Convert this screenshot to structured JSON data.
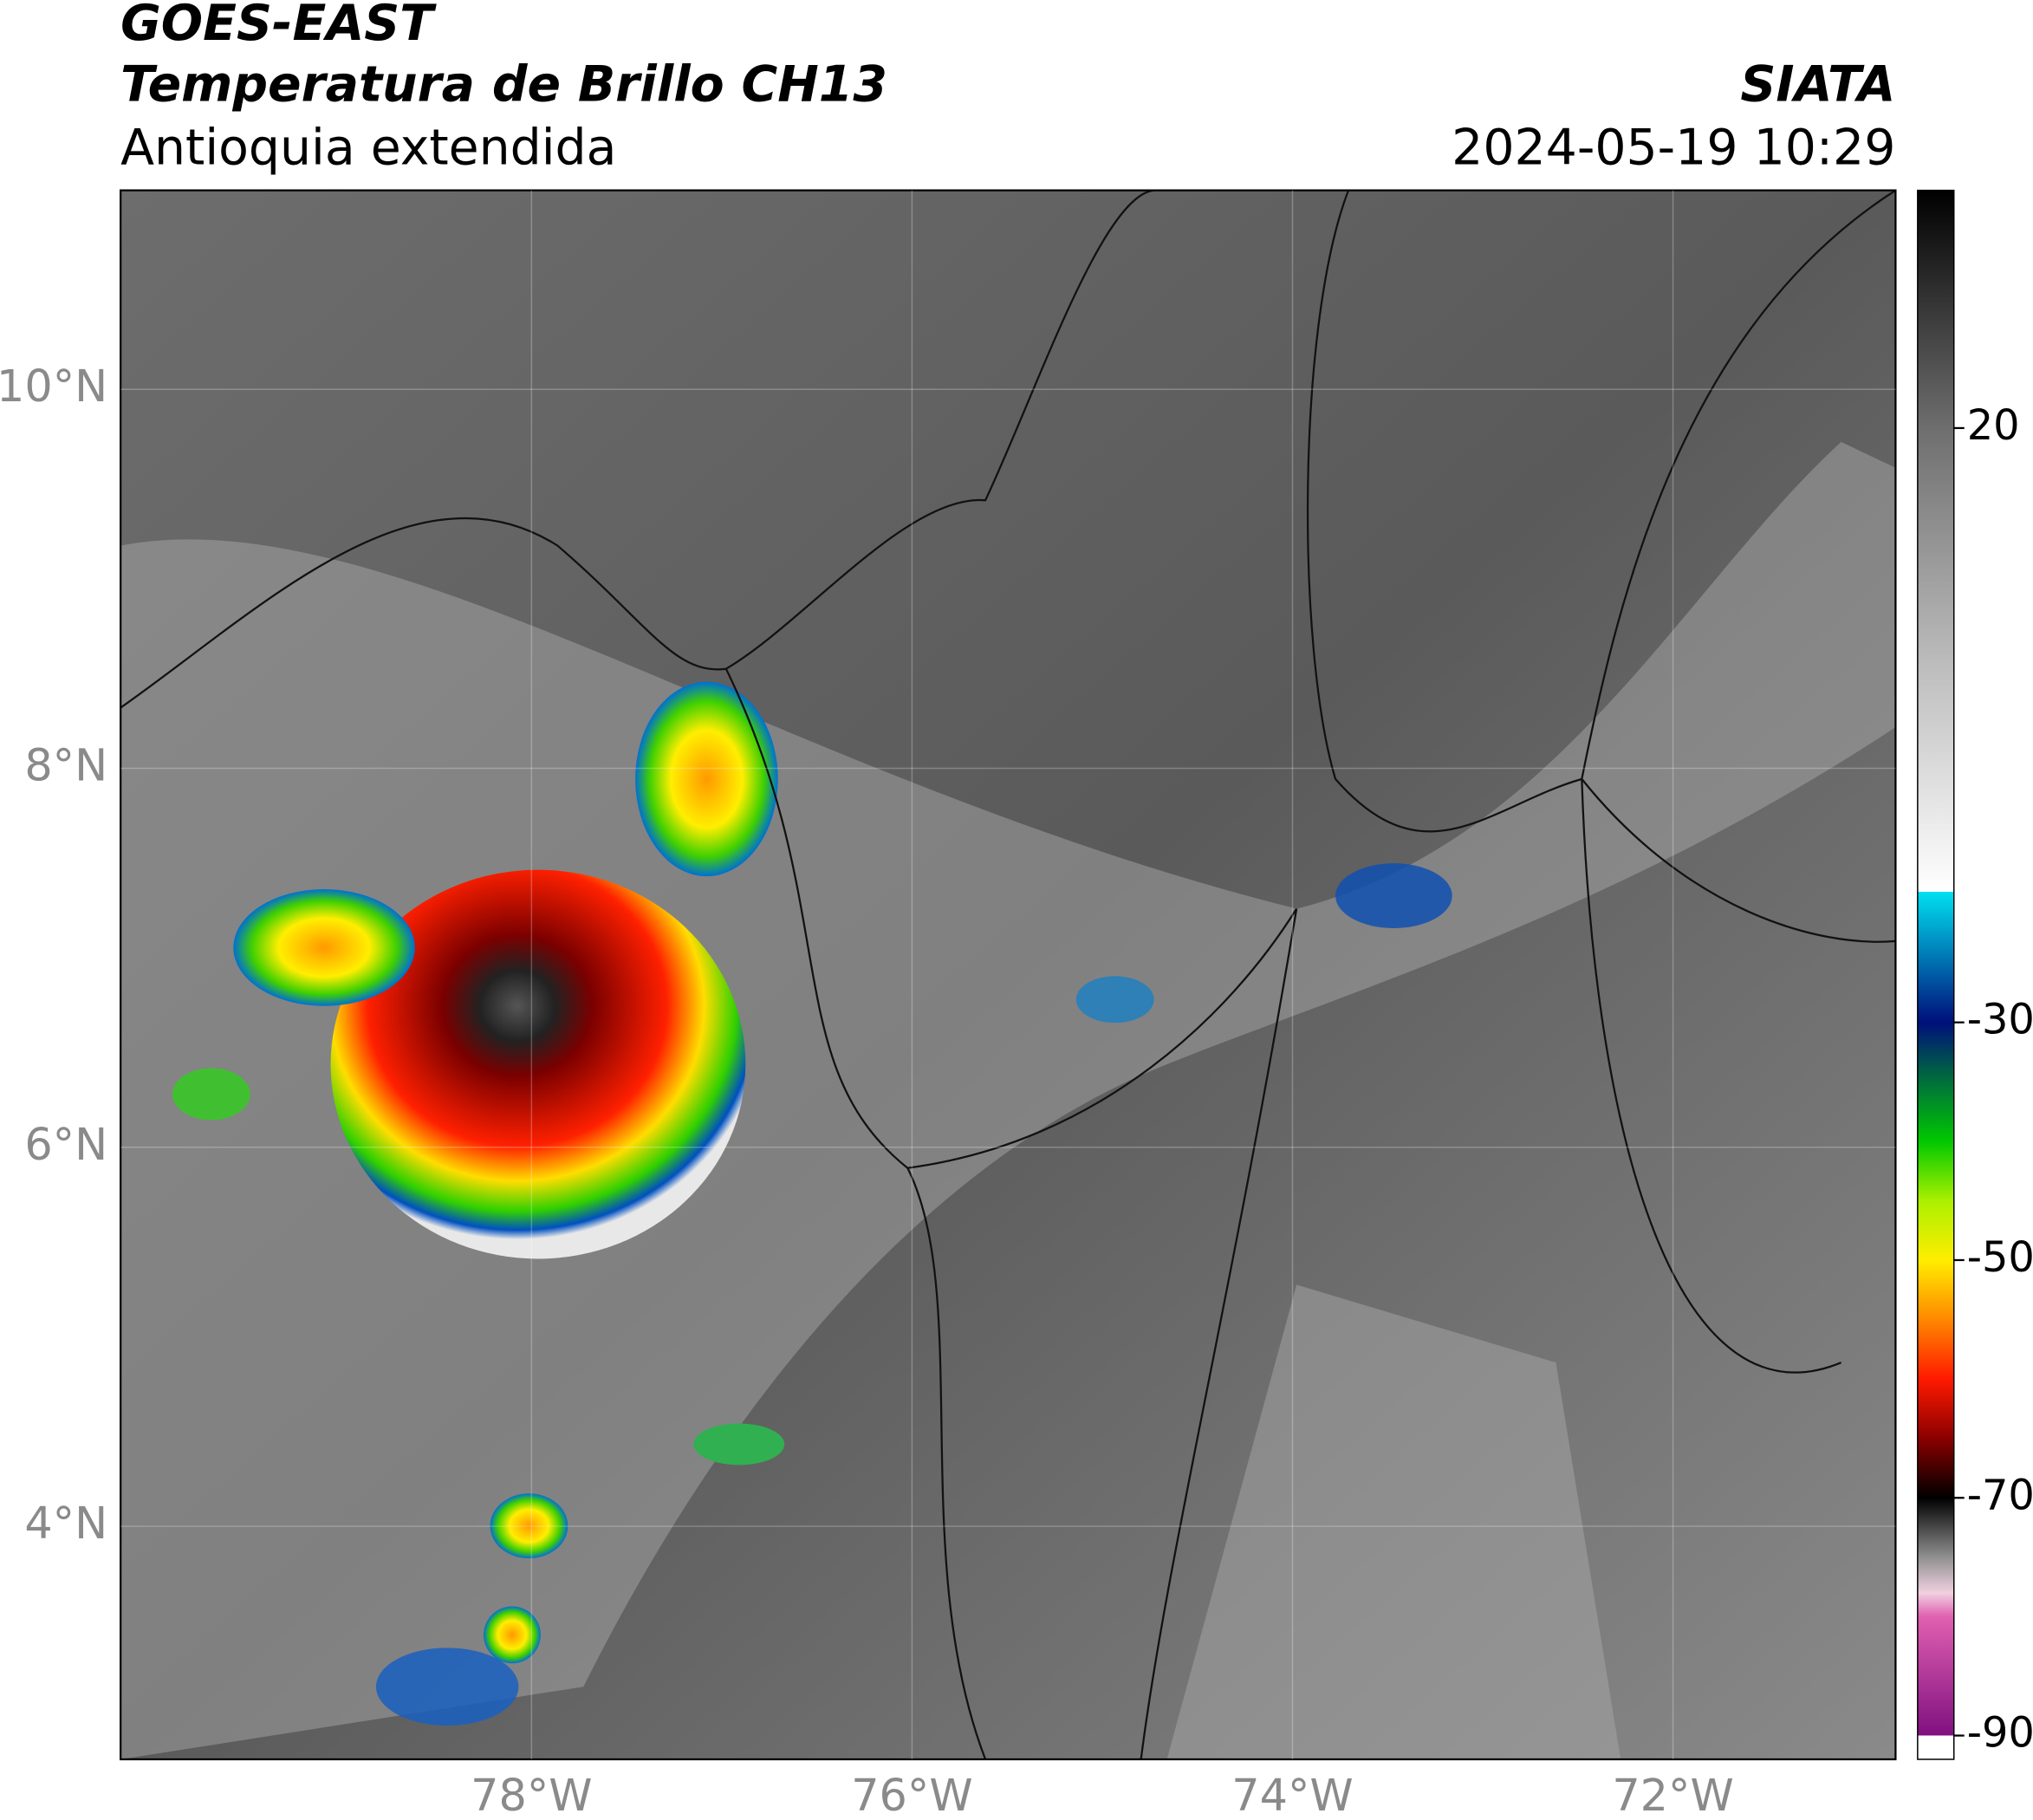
{
  "chart_data": {
    "type": "map",
    "satellite": "GOES-EAST",
    "title": "Temperatura de Brillo CH13",
    "subtitle": "Antioquia extendida",
    "source": "SIATA",
    "datetime": "2024-05-19 10:29",
    "xlim": [
      -80.16,
      -70.83
    ],
    "ylim": [
      2.77,
      11.05
    ],
    "xticks": [
      {
        "value": -78,
        "label": "78°W"
      },
      {
        "value": -76,
        "label": "76°W"
      },
      {
        "value": -74,
        "label": "74°W"
      },
      {
        "value": -72,
        "label": "72°W"
      }
    ],
    "yticks": [
      {
        "value": 10,
        "label": "10°N"
      },
      {
        "value": 8,
        "label": "8°N"
      },
      {
        "value": 6,
        "label": "6°N"
      },
      {
        "value": 4,
        "label": "4°N"
      }
    ],
    "grid": true,
    "colorbar": {
      "lim": [
        -92,
        40
      ],
      "ticks": [
        20,
        -30,
        -50,
        -70,
        -90
      ],
      "colormap": [
        {
          "value": 40,
          "color": "#000000"
        },
        {
          "value": 30,
          "color": "#383838"
        },
        {
          "value": 20,
          "color": "#6e6e6e"
        },
        {
          "value": 0,
          "color": "#bdbdbd"
        },
        {
          "value": -19,
          "color": "#ffffff"
        },
        {
          "value": -19,
          "color": "#00e0f0"
        },
        {
          "value": -30,
          "color": "#00107a"
        },
        {
          "value": -35,
          "color": "#00703a"
        },
        {
          "value": -40,
          "color": "#00c800"
        },
        {
          "value": -45,
          "color": "#aaf000"
        },
        {
          "value": -50,
          "color": "#ffee00"
        },
        {
          "value": -55,
          "color": "#ff8800"
        },
        {
          "value": -60,
          "color": "#ff1a00"
        },
        {
          "value": -65,
          "color": "#8a0000"
        },
        {
          "value": -70,
          "color": "#000000"
        },
        {
          "value": -75,
          "color": "#909090"
        },
        {
          "value": -78,
          "color": "#f0d0e0"
        },
        {
          "value": -80,
          "color": "#e060b0"
        },
        {
          "value": -90,
          "color": "#801080"
        },
        {
          "value": -90,
          "color": "#ffffff"
        },
        {
          "value": -92,
          "color": "#ffffff"
        }
      ]
    }
  }
}
